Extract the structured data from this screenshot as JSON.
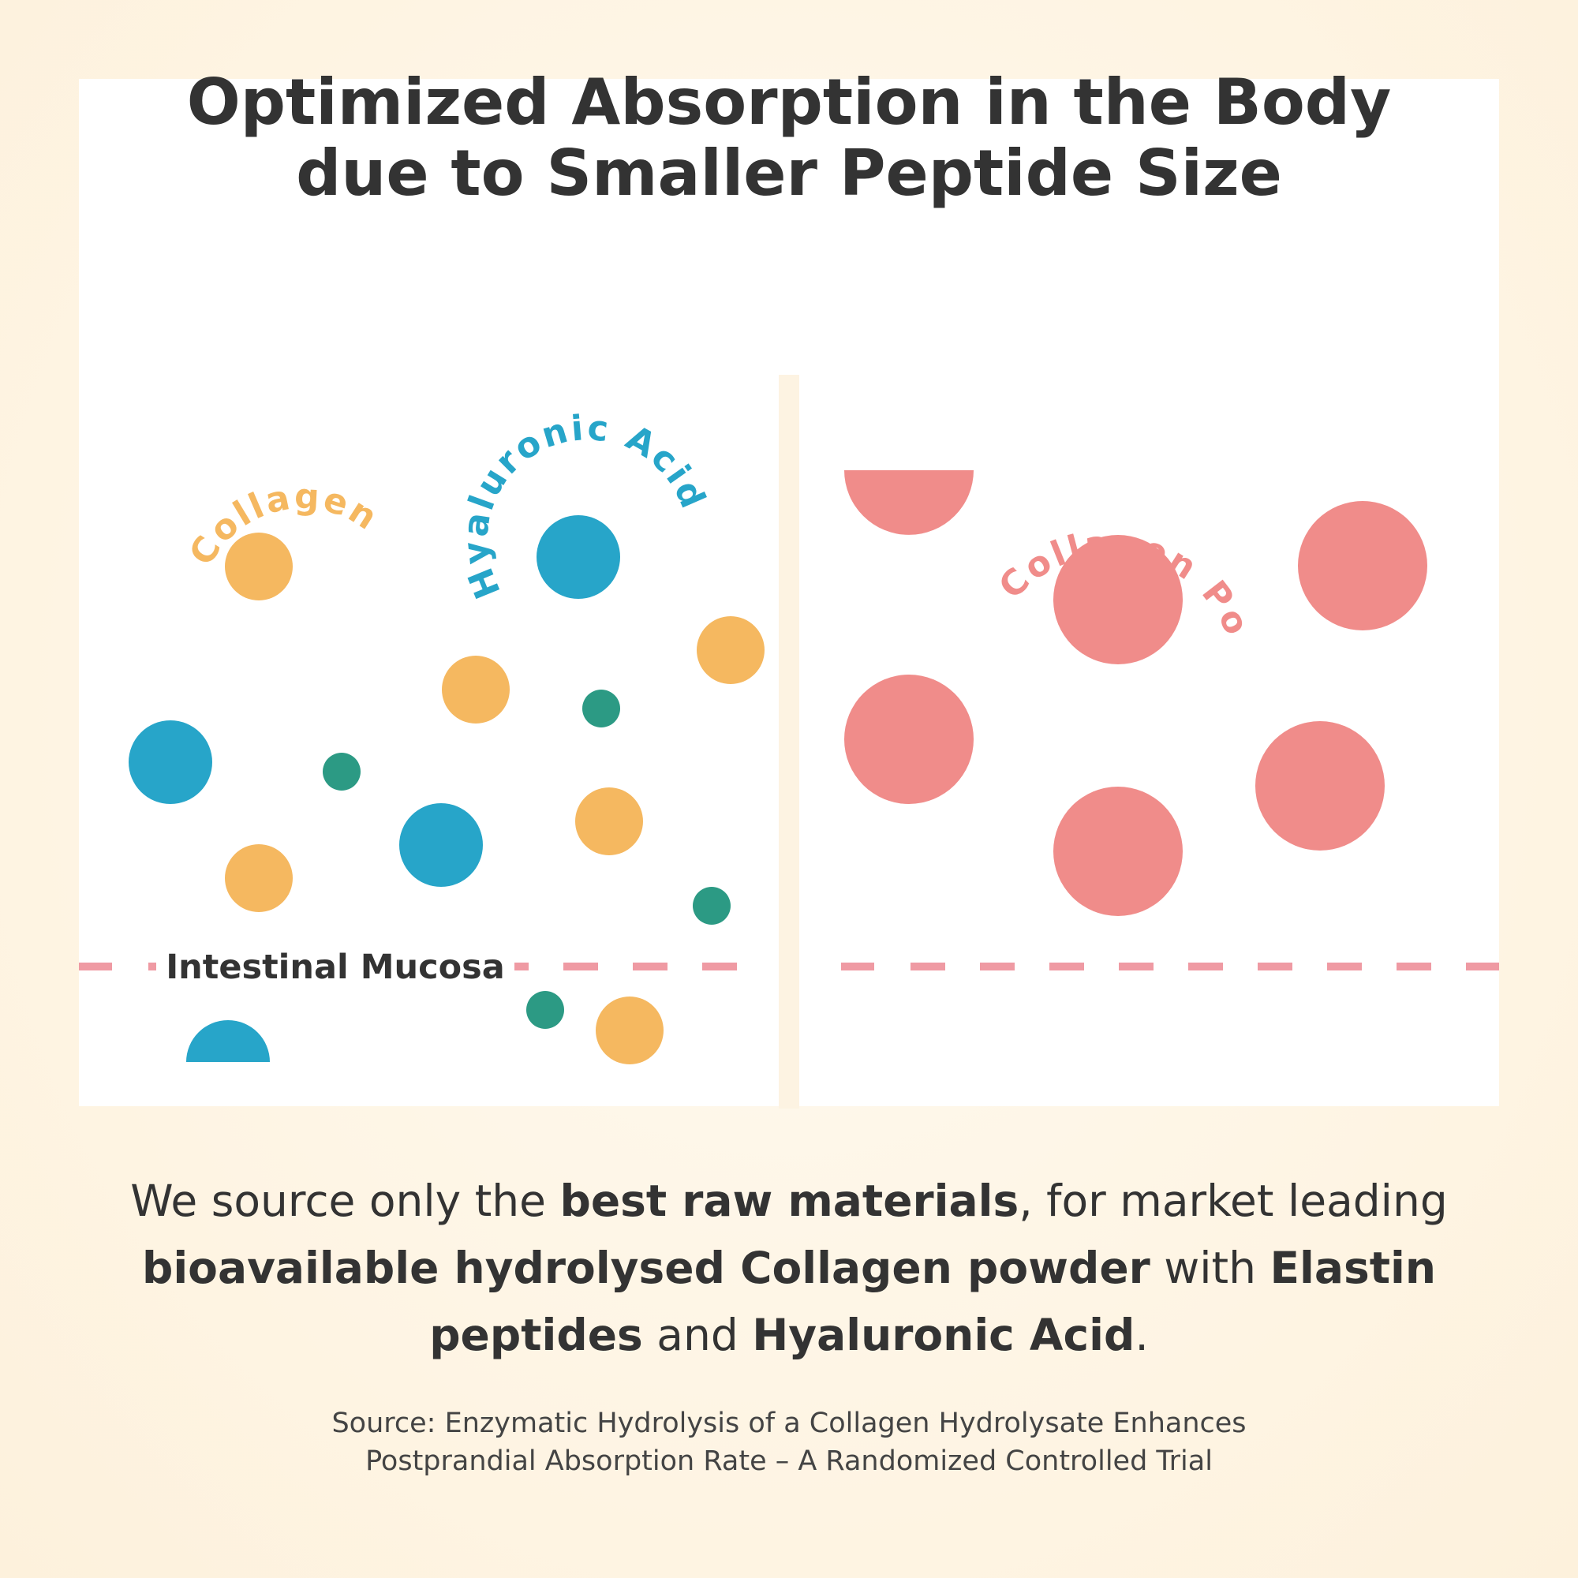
{
  "title": {
    "line1": "Optimized Absorption in the Body",
    "line2": "due to Smaller Peptide Size"
  },
  "diagram": {
    "left_labels": {
      "collagen": "Collagen",
      "hyaluronic_acid": "Hyaluronic Acid",
      "barrier": "Intestinal Mucosa"
    },
    "right_labels": {
      "collagen_powder": "Collagen Powder"
    },
    "colors": {
      "collagen": "#f5b860",
      "hyaluronic": "#27a5c9",
      "elastin": "#2c9a84",
      "powder": "#f08c8a",
      "dash": "#ef9aa3",
      "divider": "#fdf3e2"
    }
  },
  "body": {
    "t1": "We source only the ",
    "b1": "best raw materials",
    "t2": ", for market leading ",
    "b2": "bioavailable hydrolysed Collagen powder",
    "t3": " with ",
    "b3": "Elastin peptides",
    "t4": " and ",
    "b4": "Hyaluronic Acid",
    "t5": "."
  },
  "source": {
    "line1": "Source: Enzymatic Hydrolysis of a Collagen Hydrolysate Enhances",
    "line2": "Postprandial Absorption Rate – A Randomized Controlled Trial"
  }
}
